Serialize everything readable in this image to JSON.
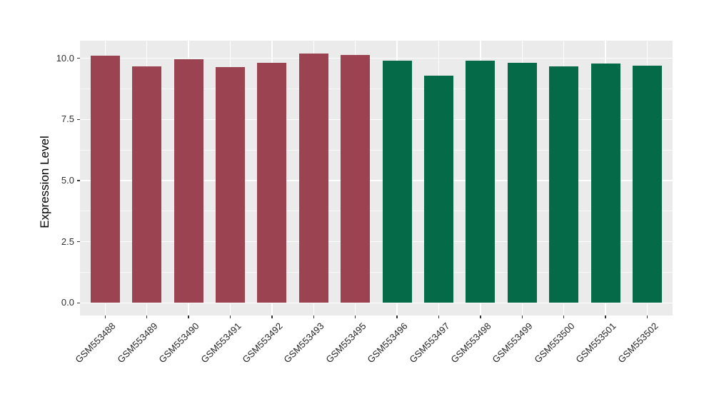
{
  "chart_data": {
    "type": "bar",
    "title": "",
    "xlabel": "",
    "ylabel": "Expression Level",
    "categories": [
      "GSM553488",
      "GSM553489",
      "GSM553490",
      "GSM553491",
      "GSM553492",
      "GSM553493",
      "GSM553495",
      "GSM553496",
      "GSM553497",
      "GSM553498",
      "GSM553499",
      "GSM553500",
      "GSM553501",
      "GSM553502"
    ],
    "values": [
      10.1,
      9.68,
      9.97,
      9.63,
      9.81,
      10.21,
      10.14,
      9.91,
      9.29,
      9.9,
      9.81,
      9.68,
      9.79,
      9.7
    ],
    "groups": [
      "red",
      "red",
      "red",
      "red",
      "red",
      "red",
      "red",
      "green",
      "green",
      "green",
      "green",
      "green",
      "green",
      "green"
    ],
    "group_colors": {
      "red": "#9B4350",
      "green": "#046A47"
    },
    "ylim": [
      -0.52,
      10.72
    ],
    "yticks": [
      0.0,
      2.5,
      5.0,
      7.5,
      10.0
    ],
    "ytick_labels": [
      "0.0",
      "2.5",
      "5.0",
      "7.5",
      "10.0"
    ],
    "yticks_minor": [
      1.25,
      3.75,
      6.25,
      8.75
    ],
    "grid": true,
    "legend": "none",
    "xtick_angle": 45,
    "panel_background": "#EBEBEB",
    "gridline_color": "#FFFFFF",
    "figure_background": "#FFFFFF"
  }
}
